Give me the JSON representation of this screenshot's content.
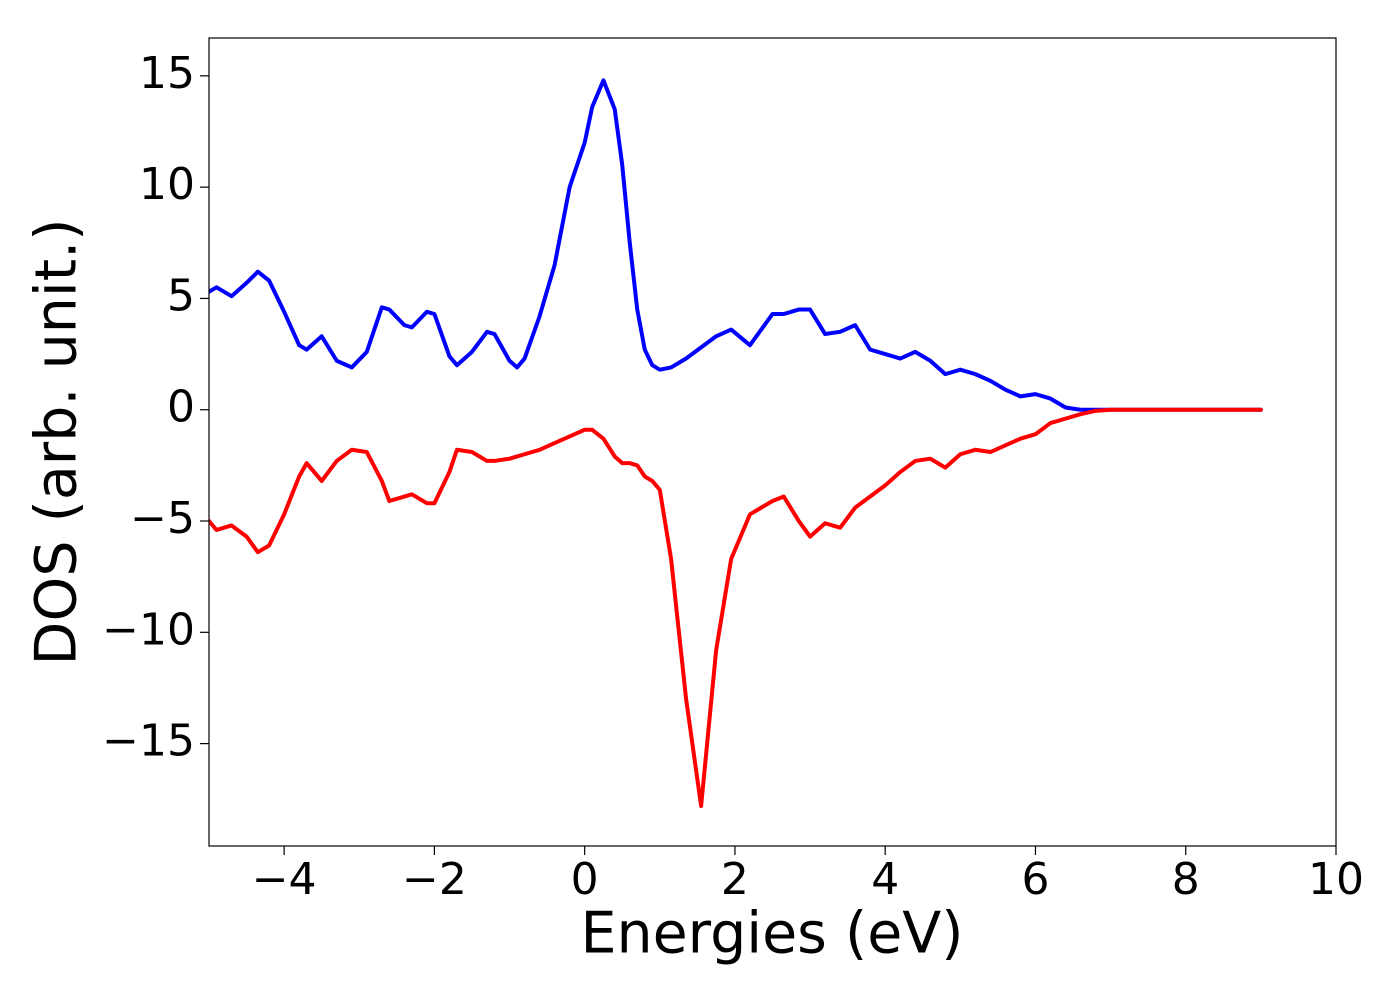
{
  "chart_data": {
    "type": "line",
    "xlabel": "Energies (eV)",
    "ylabel": "DOS (arb. unit.)",
    "x": [
      -5,
      -4.9,
      -4.7,
      -4.5,
      -4.35,
      -4.2,
      -4,
      -3.8,
      -3.7,
      -3.5,
      -3.3,
      -3.1,
      -2.9,
      -2.7,
      -2.6,
      -2.4,
      -2.3,
      -2.1,
      -2,
      -1.8,
      -1.7,
      -1.5,
      -1.3,
      -1.2,
      -1,
      -0.9,
      -0.8,
      -0.6,
      -0.4,
      -0.2,
      0,
      0.1,
      0.25,
      0.4,
      0.5,
      0.6,
      0.7,
      0.8,
      0.9,
      1,
      1.15,
      1.35,
      1.55,
      1.75,
      1.95,
      2.2,
      2.5,
      2.65,
      2.85,
      3,
      3.2,
      3.4,
      3.6,
      3.8,
      4,
      4.2,
      4.4,
      4.6,
      4.8,
      5,
      5.2,
      5.4,
      5.6,
      5.8,
      6,
      6.2,
      6.4,
      6.6,
      6.8,
      7,
      9
    ],
    "series": [
      {
        "color": "#0000ff",
        "values": [
          5.3,
          5.5,
          5.1,
          5.7,
          6.2,
          5.8,
          4.4,
          2.9,
          2.7,
          3.3,
          2.2,
          1.9,
          2.6,
          4.6,
          4.5,
          3.8,
          3.7,
          4.4,
          4.3,
          2.4,
          2.0,
          2.6,
          3.5,
          3.4,
          2.2,
          1.9,
          2.3,
          4.2,
          6.5,
          10.0,
          12.0,
          13.6,
          14.8,
          13.5,
          11.0,
          7.5,
          4.5,
          2.7,
          2.0,
          1.8,
          1.9,
          2.3,
          2.8,
          3.3,
          3.6,
          2.9,
          4.3,
          4.3,
          4.5,
          4.5,
          3.4,
          3.5,
          3.8,
          2.7,
          2.5,
          2.3,
          2.6,
          2.2,
          1.6,
          1.8,
          1.6,
          1.3,
          0.9,
          0.6,
          0.7,
          0.5,
          0.1,
          0,
          0,
          0,
          0
        ]
      },
      {
        "color": "#ff0000",
        "values": [
          -5.0,
          -5.4,
          -5.2,
          -5.7,
          -6.4,
          -6.1,
          -4.7,
          -3.0,
          -2.4,
          -3.2,
          -2.3,
          -1.8,
          -1.9,
          -3.2,
          -4.1,
          -3.9,
          -3.8,
          -4.2,
          -4.2,
          -2.8,
          -1.8,
          -1.9,
          -2.3,
          -2.3,
          -2.2,
          -2.1,
          -2.0,
          -1.8,
          -1.5,
          -1.2,
          -0.9,
          -0.9,
          -1.3,
          -2.1,
          -2.4,
          -2.4,
          -2.5,
          -3.0,
          -3.2,
          -3.6,
          -6.7,
          -13.0,
          -17.8,
          -10.8,
          -6.7,
          -4.7,
          -4.1,
          -3.9,
          -5.0,
          -5.7,
          -5.1,
          -5.3,
          -4.4,
          -3.9,
          -3.4,
          -2.8,
          -2.3,
          -2.2,
          -2.6,
          -2.0,
          -1.8,
          -1.9,
          -1.6,
          -1.3,
          -1.1,
          -0.6,
          -0.4,
          -0.2,
          -0.05,
          0,
          0
        ]
      }
    ],
    "xlim": [
      -5,
      10
    ],
    "xticks": [
      {
        "value": -4,
        "label": "−4"
      },
      {
        "value": -2,
        "label": "−2"
      },
      0,
      2,
      4,
      6,
      8,
      10
    ],
    "ylim": [
      -19.6,
      16.7
    ],
    "yticks": [
      {
        "value": -15,
        "label": "−15"
      },
      {
        "value": -10,
        "label": "−10"
      },
      {
        "value": -5,
        "label": "−5"
      },
      0,
      5,
      10,
      15
    ]
  }
}
